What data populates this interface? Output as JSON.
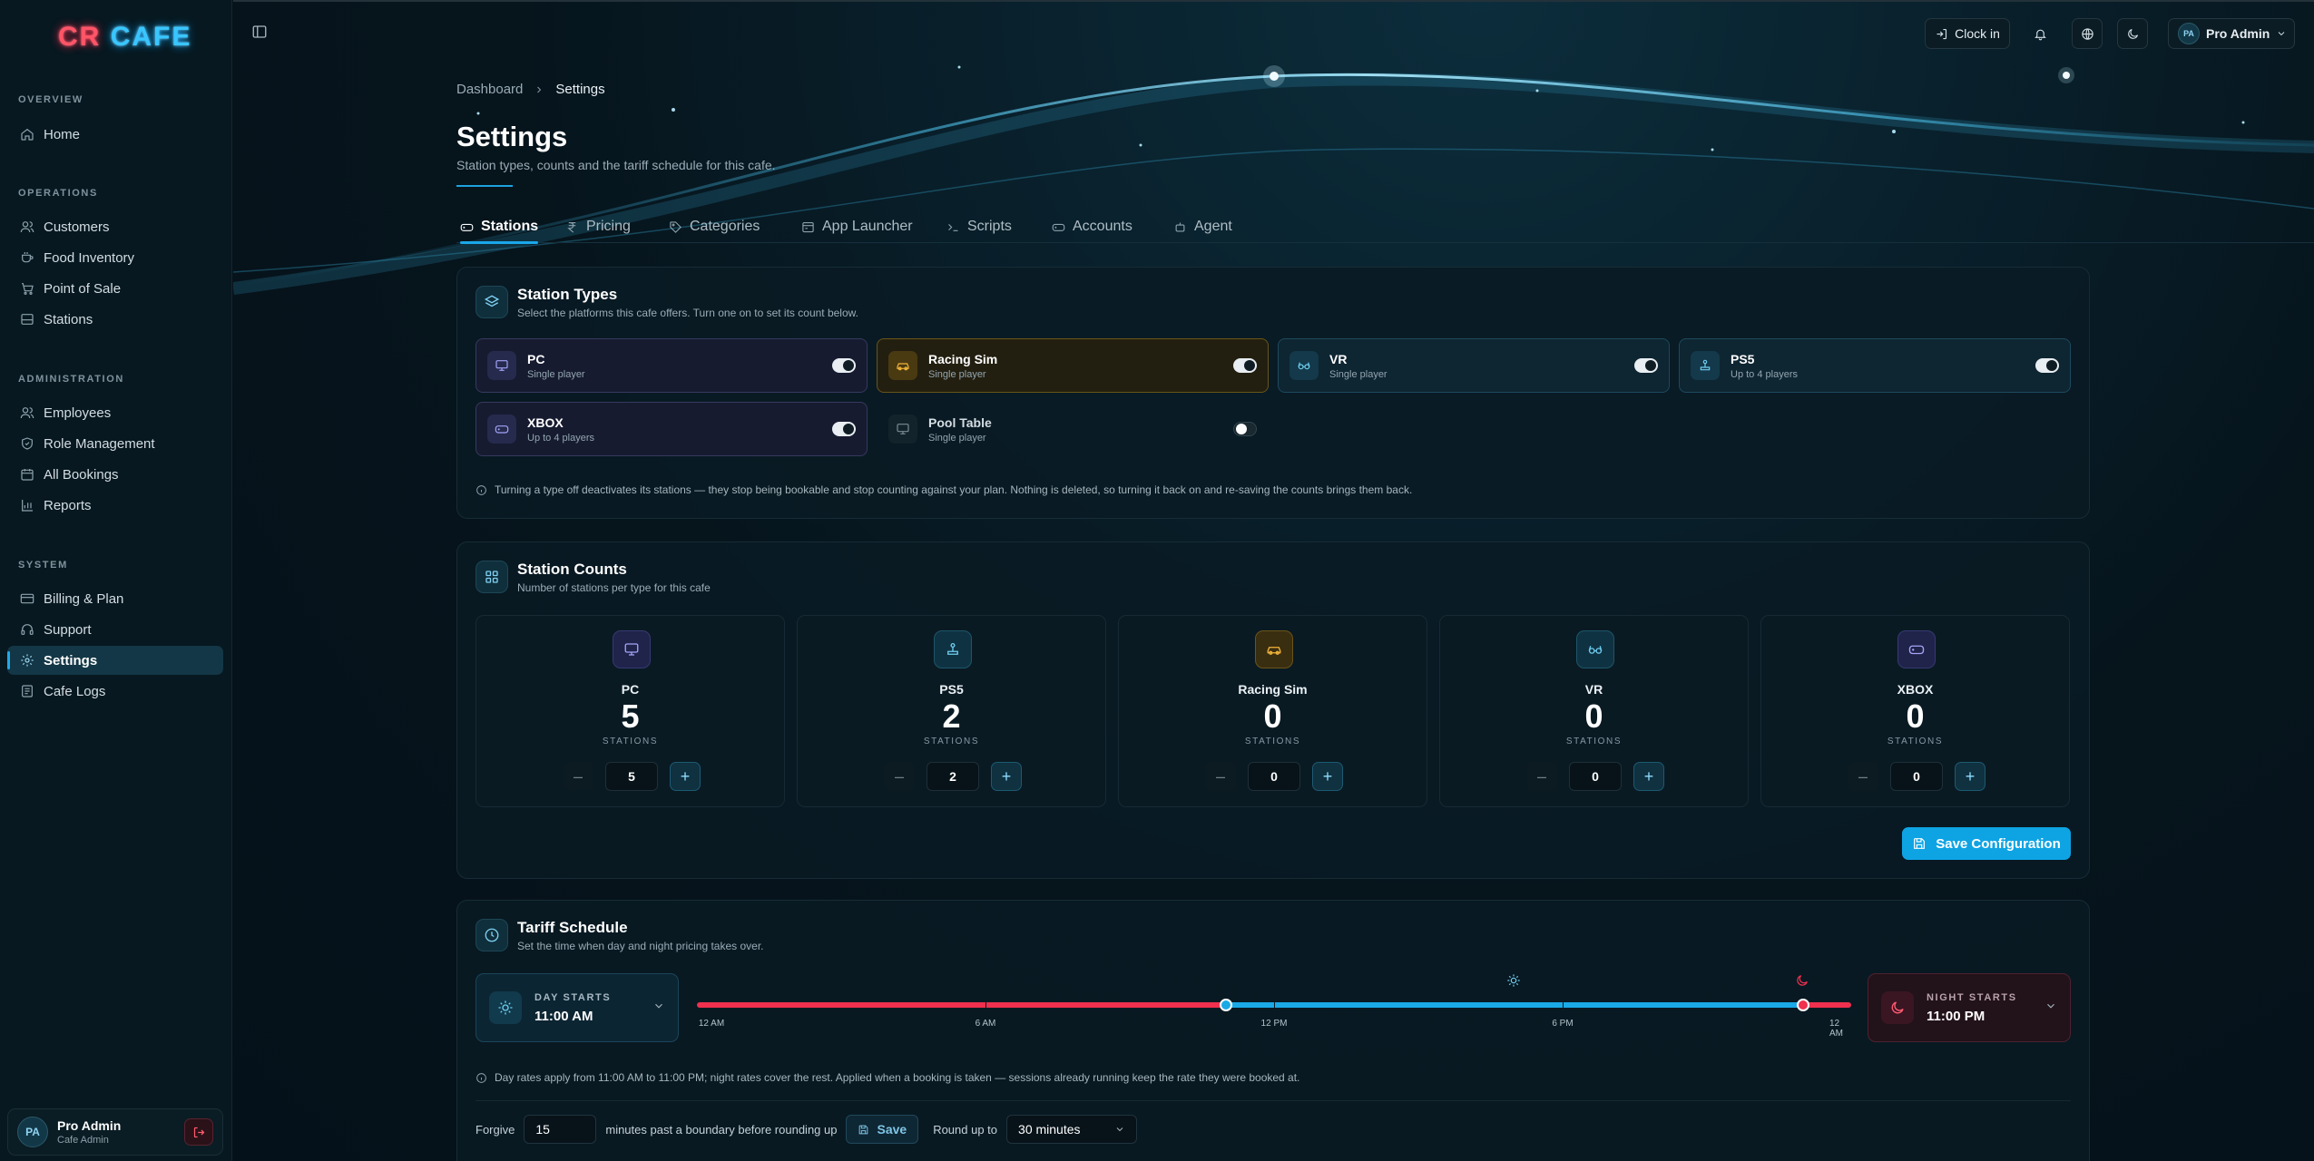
{
  "app": {
    "logo_part1": "CR",
    "logo_part2": "CAFE"
  },
  "sidebar": {
    "sections": [
      {
        "title": "OVERVIEW",
        "items": [
          {
            "label": "Home",
            "icon": "home-icon"
          }
        ]
      },
      {
        "title": "OPERATIONS",
        "items": [
          {
            "label": "Customers",
            "icon": "users-icon"
          },
          {
            "label": "Food Inventory",
            "icon": "cup-icon"
          },
          {
            "label": "Point of Sale",
            "icon": "cart-icon"
          },
          {
            "label": "Stations",
            "icon": "server-icon"
          }
        ]
      },
      {
        "title": "ADMINISTRATION",
        "items": [
          {
            "label": "Employees",
            "icon": "users-icon"
          },
          {
            "label": "Role Management",
            "icon": "shield-icon"
          },
          {
            "label": "All Bookings",
            "icon": "calendar-icon"
          },
          {
            "label": "Reports",
            "icon": "bar-chart-icon"
          }
        ]
      },
      {
        "title": "SYSTEM",
        "items": [
          {
            "label": "Billing & Plan",
            "icon": "credit-card-icon"
          },
          {
            "label": "Support",
            "icon": "headset-icon"
          },
          {
            "label": "Settings",
            "icon": "gear-icon",
            "active": true
          },
          {
            "label": "Cafe Logs",
            "icon": "log-icon"
          }
        ]
      }
    ],
    "user": {
      "initials": "PA",
      "name": "Pro Admin",
      "role": "Cafe Admin"
    }
  },
  "topbar": {
    "clock_in": "Clock in",
    "user_initials": "PA",
    "user_name": "Pro Admin"
  },
  "breadcrumb": {
    "root": "Dashboard",
    "current": "Settings"
  },
  "page": {
    "title": "Settings",
    "subtitle": "Station types, counts and the tariff schedule for this cafe."
  },
  "tabs": [
    "Stations",
    "Pricing",
    "Categories",
    "App Launcher",
    "Scripts",
    "Accounts",
    "Agent"
  ],
  "station_types": {
    "title": "Station Types",
    "subtitle": "Select the platforms this cafe offers. Turn one on to set its count below.",
    "items": [
      {
        "name": "PC",
        "sub": "Single player",
        "enabled": true,
        "icon": "monitor-icon",
        "color": "#8b8cf5"
      },
      {
        "name": "Racing Sim",
        "sub": "Single player",
        "enabled": true,
        "icon": "car-icon",
        "color": "#f2b43a"
      },
      {
        "name": "VR",
        "sub": "Single player",
        "enabled": true,
        "icon": "vr-glasses-icon",
        "color": "#6fcdf0"
      },
      {
        "name": "PS5",
        "sub": "Up to 4 players",
        "enabled": true,
        "icon": "joystick-icon",
        "color": "#6fcdf0"
      },
      {
        "name": "XBOX",
        "sub": "Up to 4 players",
        "enabled": true,
        "icon": "gamepad-icon",
        "color": "#9f9ff5"
      },
      {
        "name": "Pool Table",
        "sub": "Single player",
        "enabled": false,
        "icon": "monitor-icon",
        "color": "#7b8c95"
      }
    ],
    "note": "Turning a type off deactivates its stations — they stop being bookable and stop counting against your plan. Nothing is deleted, so turning it back on and re-saving the counts brings them back."
  },
  "station_counts": {
    "title": "Station Counts",
    "subtitle": "Number of stations per type for this cafe",
    "unit_label": "STATIONS",
    "items": [
      {
        "name": "PC",
        "count": "5",
        "icon": "monitor-icon",
        "color": "#9a9cf7"
      },
      {
        "name": "PS5",
        "count": "2",
        "icon": "joystick-icon",
        "color": "#6fcdf0"
      },
      {
        "name": "Racing Sim",
        "count": "0",
        "icon": "car-icon",
        "color": "#f2b43a"
      },
      {
        "name": "VR",
        "count": "0",
        "icon": "vr-glasses-icon",
        "color": "#6fcdf0"
      },
      {
        "name": "XBOX",
        "count": "0",
        "icon": "gamepad-icon",
        "color": "#a4a6f7"
      }
    ],
    "save_label": "Save Configuration"
  },
  "tariff": {
    "title": "Tariff Schedule",
    "subtitle": "Set the time when day and night pricing takes over.",
    "day_label": "DAY STARTS",
    "day_value": "11:00 AM",
    "night_label": "NIGHT STARTS",
    "night_value": "11:00 PM",
    "timeline_labels": [
      "12 AM",
      "6 AM",
      "12 PM",
      "6 PM",
      "12 AM"
    ],
    "day_start_hour": 11,
    "night_start_hour": 23,
    "day_color": "#1aa9e6",
    "night_color": "#f0304e",
    "note": "Day rates apply from 11:00 AM to 11:00 PM; night rates cover the rest. Applied when a booking is taken — sessions already running keep the rate they were booked at.",
    "forgive_label": "Forgive",
    "forgive_value": "15",
    "forgive_suffix": "minutes past a boundary before rounding up",
    "save_label": "Save",
    "round_label": "Round up to",
    "round_value": "30 minutes"
  }
}
